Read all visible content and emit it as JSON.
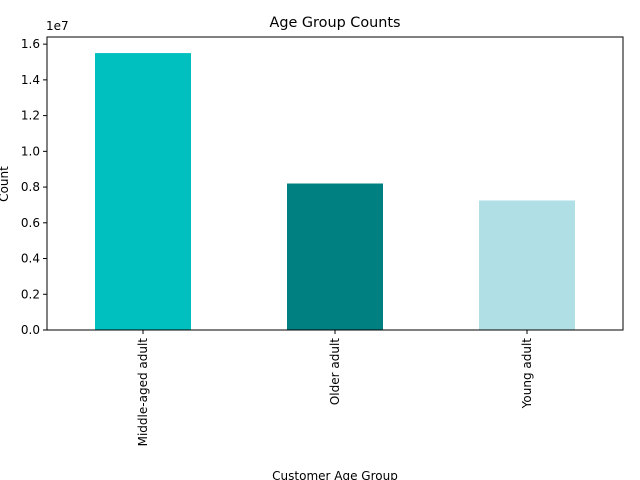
{
  "chart_data": {
    "type": "bar",
    "title": "Age Group Counts",
    "xlabel": "Customer Age Group",
    "ylabel": "Count",
    "y_offset_label": "1e7",
    "categories": [
      "Middle-aged adult",
      "Older adult",
      "Young adult"
    ],
    "values": [
      15500000,
      8200000,
      7250000
    ],
    "colors": [
      "#00bfbf",
      "#008080",
      "#b0dfe5"
    ],
    "ylim": [
      0,
      16400000
    ],
    "yticks": [
      {
        "value": 0,
        "label": "0.0"
      },
      {
        "value": 2000000,
        "label": "0.2"
      },
      {
        "value": 4000000,
        "label": "0.4"
      },
      {
        "value": 6000000,
        "label": "0.6"
      },
      {
        "value": 8000000,
        "label": "0.8"
      },
      {
        "value": 10000000,
        "label": "1.0"
      },
      {
        "value": 12000000,
        "label": "1.2"
      },
      {
        "value": 14000000,
        "label": "1.4"
      },
      {
        "value": 16000000,
        "label": "1.6"
      }
    ],
    "grid": false,
    "legend": "none"
  }
}
